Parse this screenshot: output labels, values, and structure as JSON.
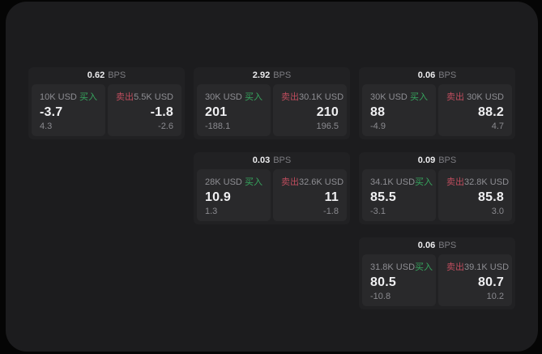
{
  "window": {
    "background": "#050505",
    "panel_background": "#1c1c1e"
  },
  "labels": {
    "bps_unit": "BPS",
    "buy": "买入",
    "sell": "卖出"
  },
  "colors": {
    "buy_green": "#36a55e",
    "sell_red": "#bf4d5e",
    "value_white": "#f0f0f2",
    "muted_gray": "#8e8e93",
    "card_bg": "#212123",
    "subpanel_bg": "#29292b"
  },
  "cards": [
    {
      "bps": "0.62",
      "buy": {
        "amount": "10K USD",
        "price": "-3.7",
        "sub": "4.3"
      },
      "sell": {
        "amount": "5.5K USD",
        "price": "-1.8",
        "sub": "-2.6"
      }
    },
    {
      "bps": "2.92",
      "buy": {
        "amount": "30K USD",
        "price": "201",
        "sub": "-188.1"
      },
      "sell": {
        "amount": "30.1K USD",
        "price": "210",
        "sub": "196.5"
      }
    },
    {
      "bps": "0.06",
      "buy": {
        "amount": "30K USD",
        "price": "88",
        "sub": "-4.9"
      },
      "sell": {
        "amount": "30K USD",
        "price": "88.2",
        "sub": "4.7"
      }
    },
    {
      "bps": "0.03",
      "buy": {
        "amount": "28K USD",
        "price": "10.9",
        "sub": "1.3"
      },
      "sell": {
        "amount": "32.6K USD",
        "price": "11",
        "sub": "-1.8"
      }
    },
    {
      "bps": "0.09",
      "buy": {
        "amount": "34.1K USD",
        "price": "85.5",
        "sub": "-3.1"
      },
      "sell": {
        "amount": "32.8K USD",
        "price": "85.8",
        "sub": "3.0"
      }
    },
    {
      "bps": "0.06",
      "buy": {
        "amount": "31.8K USD",
        "price": "80.5",
        "sub": "-10.8"
      },
      "sell": {
        "amount": "39.1K USD",
        "price": "80.7",
        "sub": "10.2"
      }
    }
  ]
}
